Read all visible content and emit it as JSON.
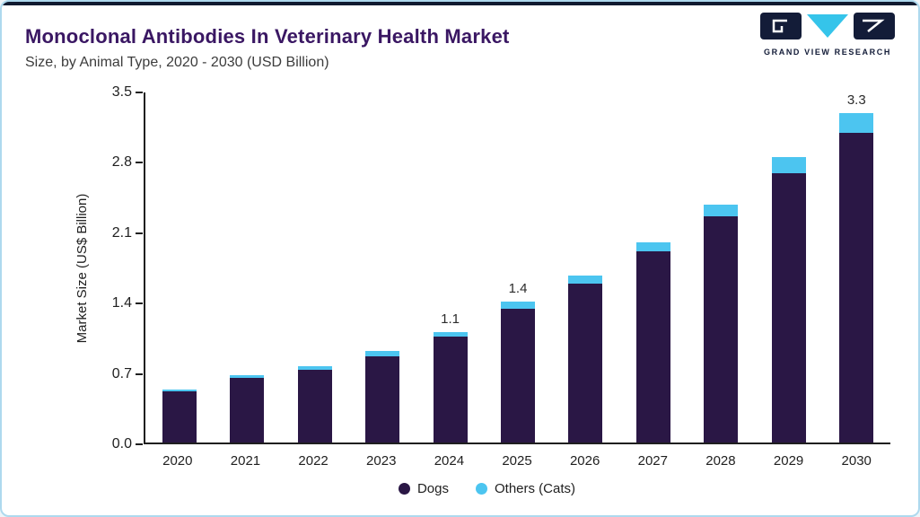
{
  "meta": {
    "title": "Monoclonal Antibodies In Veterinary Health Market",
    "subtitle": "Size, by Animal Type, 2020 - 2030 (USD Billion)"
  },
  "logo": {
    "text": "GRAND VIEW RESEARCH"
  },
  "colors": {
    "dogs": "#2a1745",
    "others": "#4cc5f0",
    "title": "#3a1763",
    "border": "#aed9ee",
    "topbar": "#101a30"
  },
  "chart_data": {
    "type": "bar",
    "stacked": true,
    "title": "Monoclonal Antibodies In Veterinary Health Market Size, by Animal Type, 2020 - 2030 (USD Billion)",
    "categories": [
      "2020",
      "2021",
      "2022",
      "2023",
      "2024",
      "2025",
      "2026",
      "2027",
      "2028",
      "2029",
      "2030"
    ],
    "series": [
      {
        "name": "Dogs",
        "color": "#2a1745",
        "values": [
          0.51,
          0.64,
          0.72,
          0.86,
          1.05,
          1.33,
          1.58,
          1.9,
          2.25,
          2.68,
          3.1
        ]
      },
      {
        "name": "Others (Cats)",
        "color": "#4cc5f0",
        "values": [
          0.02,
          0.03,
          0.04,
          0.05,
          0.05,
          0.07,
          0.08,
          0.09,
          0.12,
          0.16,
          0.2
        ]
      }
    ],
    "totals_labels": {
      "2024": "1.1",
      "2025": "1.4",
      "2030": "3.3"
    },
    "xlabel": "",
    "ylabel": "Market Size (US$ Billion)",
    "ylim": [
      0,
      3.5
    ],
    "yticks": [
      "0.0",
      "0.7",
      "1.4",
      "2.1",
      "2.8",
      "3.5"
    ],
    "grid": false,
    "legend_position": "bottom"
  }
}
